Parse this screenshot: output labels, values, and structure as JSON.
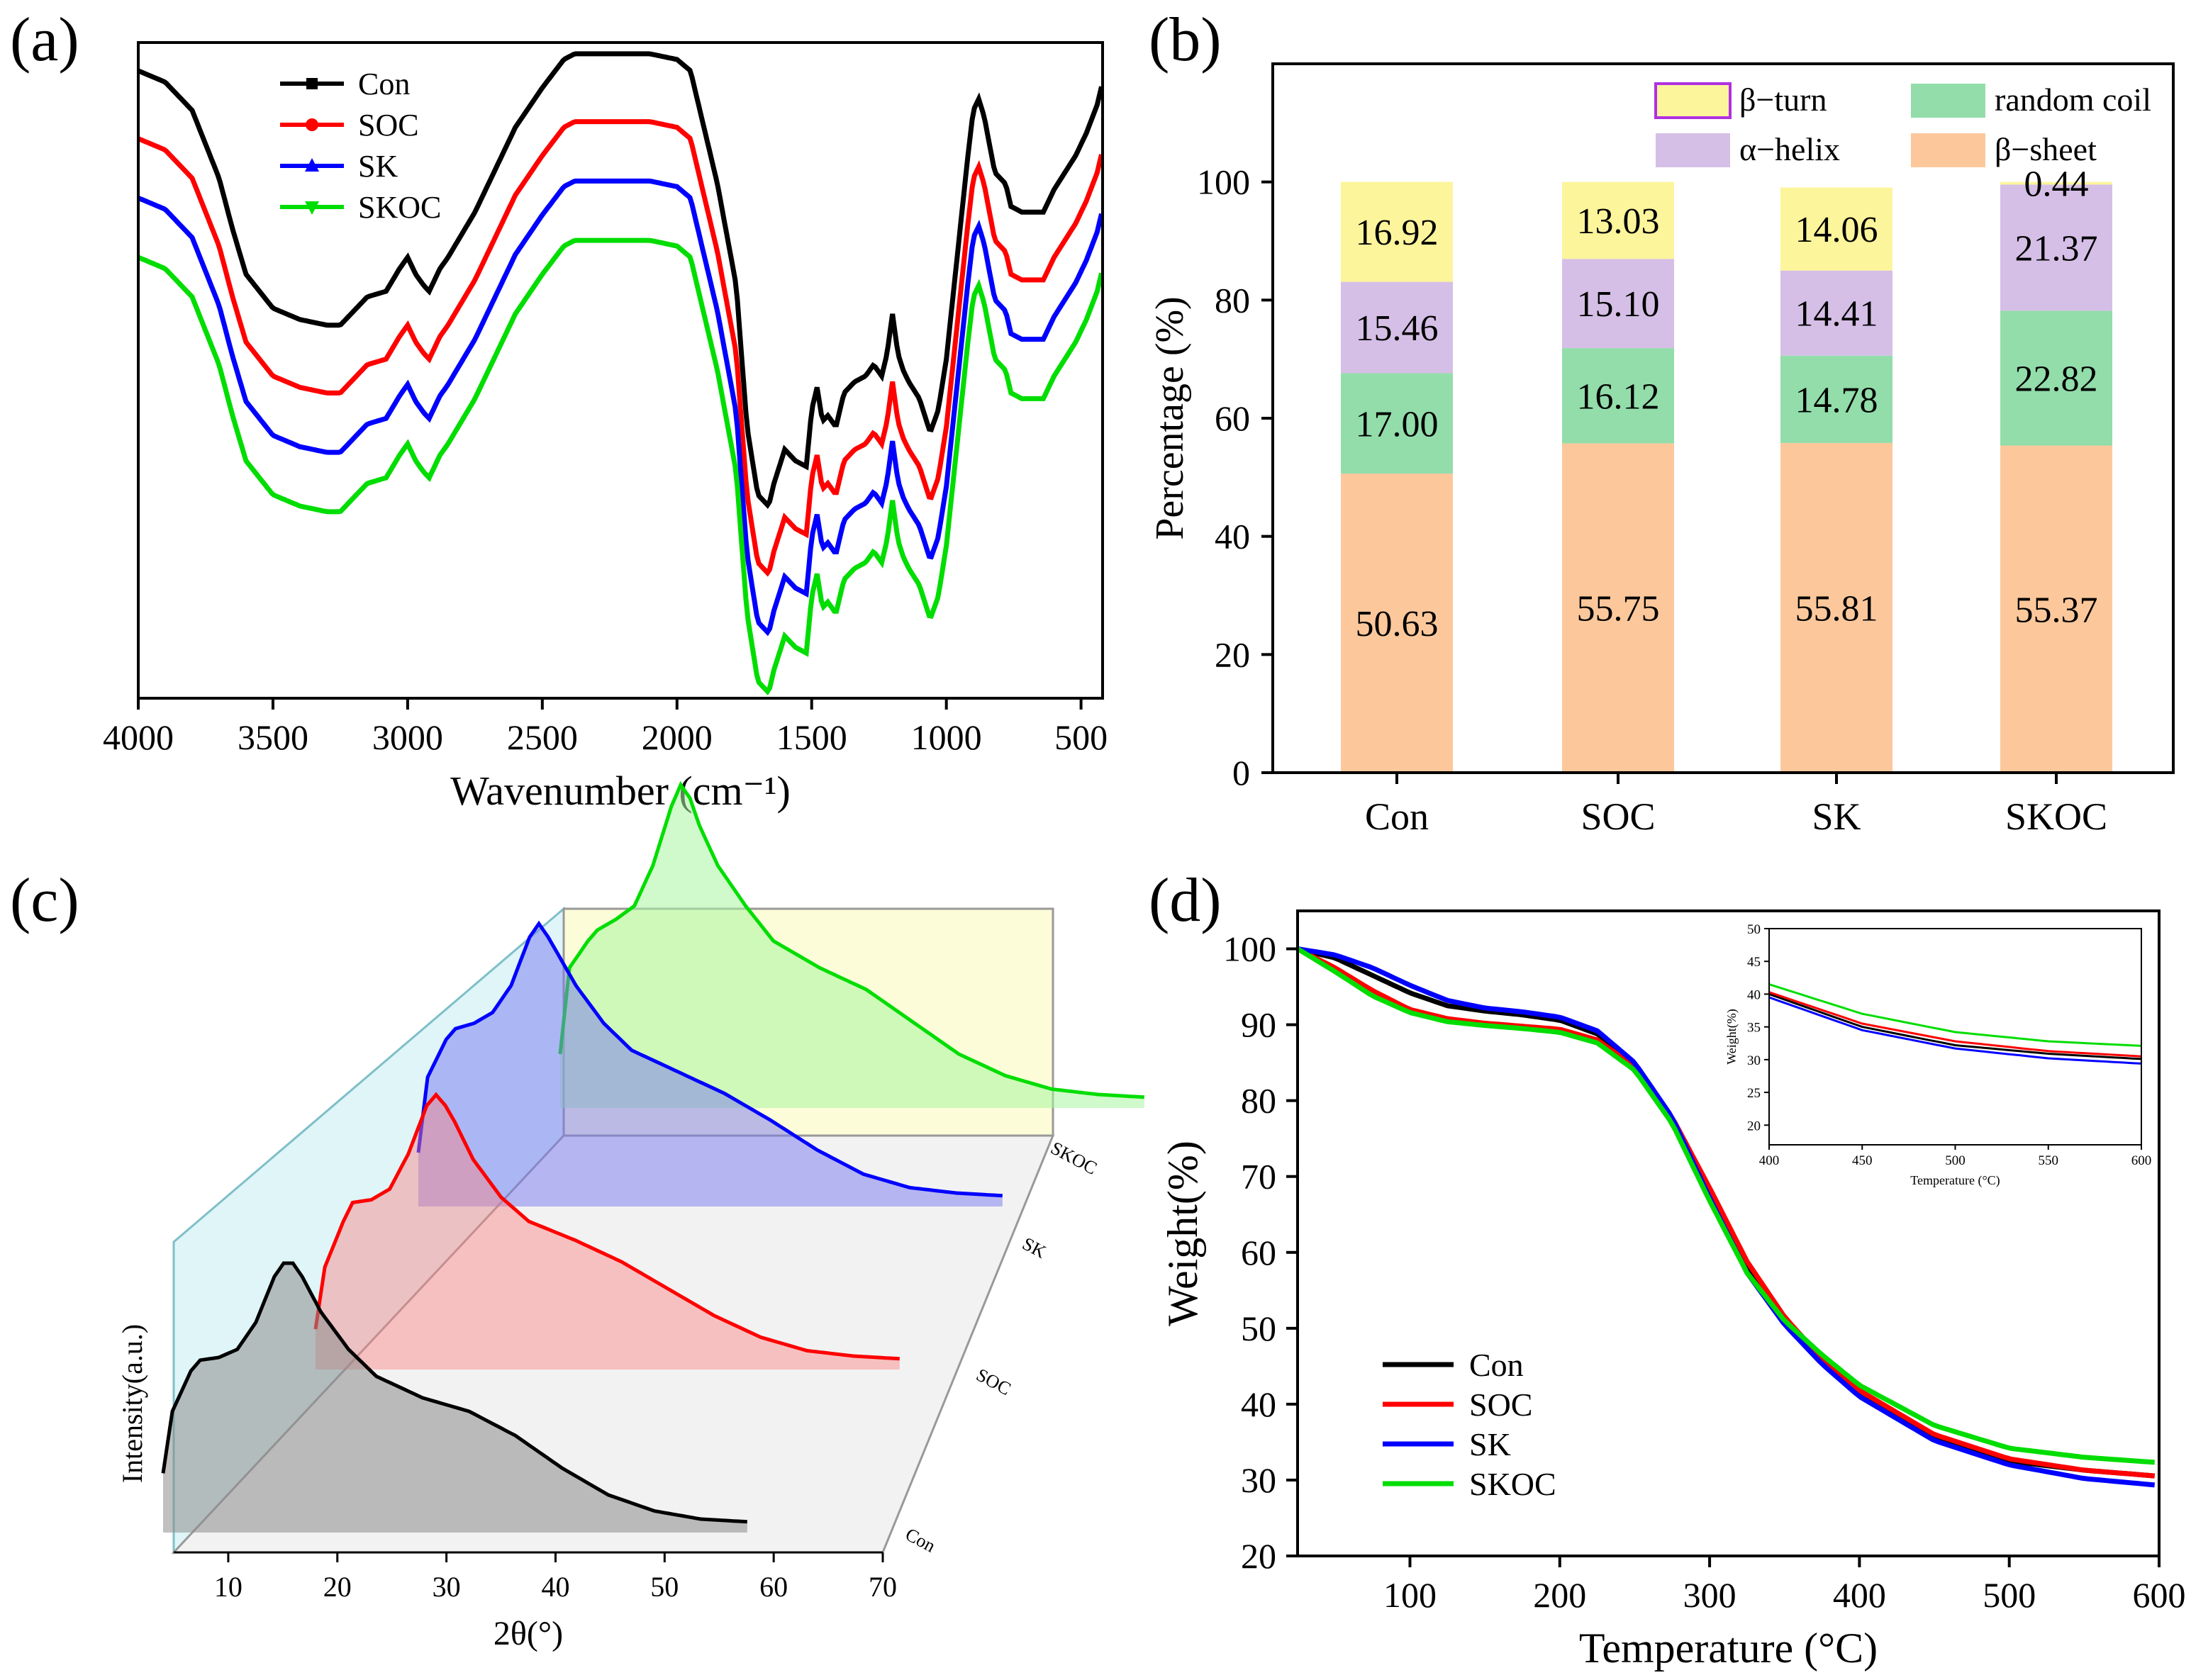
{
  "panels": {
    "a": "(a)",
    "b": "(b)",
    "c": "(c)",
    "d": "(d)"
  },
  "colors": {
    "Con": "#000000",
    "SOC": "#ff0000",
    "SK": "#0000ff",
    "SKOC": "#00dd00"
  },
  "chart_data": [
    {
      "id": "a",
      "type": "line",
      "title": "",
      "xlabel": "Wavenumber (cm⁻¹)",
      "ylabel": "",
      "xlim": [
        4000,
        420
      ],
      "xticks": [
        4000,
        3500,
        3000,
        2500,
        2000,
        1500,
        1000,
        500
      ],
      "legend_position": "top-left",
      "series": [
        {
          "name": "Con",
          "offset": 3.3
        },
        {
          "name": "SOC",
          "offset": 2.1
        },
        {
          "name": "SK",
          "offset": 1.05
        },
        {
          "name": "SKOC",
          "offset": 0
        }
      ],
      "profile": {
        "x": [
          4000,
          3900,
          3800,
          3700,
          3650,
          3600,
          3500,
          3400,
          3300,
          3250,
          3150,
          3080,
          3030,
          3000,
          2970,
          2940,
          2920,
          2880,
          2850,
          2750,
          2600,
          2500,
          2420,
          2380,
          2300,
          2100,
          2000,
          1950,
          1850,
          1780,
          1740,
          1700,
          1660,
          1640,
          1600,
          1560,
          1520,
          1500,
          1480,
          1460,
          1440,
          1410,
          1380,
          1340,
          1300,
          1270,
          1240,
          1220,
          1200,
          1180,
          1160,
          1140,
          1100,
          1060,
          1030,
          1000,
          960,
          920,
          900,
          880,
          860,
          820,
          780,
          760,
          720,
          680,
          640,
          600,
          560,
          520,
          480,
          440,
          420
        ],
        "y": [
          7.8,
          7.6,
          7.1,
          5.9,
          5.0,
          4.2,
          3.6,
          3.4,
          3.3,
          3.3,
          3.8,
          3.9,
          4.3,
          4.5,
          4.2,
          4.0,
          3.9,
          4.3,
          4.5,
          5.3,
          6.8,
          7.5,
          8.0,
          8.1,
          8.1,
          8.1,
          8.0,
          7.8,
          5.8,
          4.0,
          1.5,
          0.3,
          0.1,
          0.5,
          1.1,
          0.9,
          0.8,
          1.8,
          2.2,
          1.6,
          1.7,
          1.5,
          2.1,
          2.3,
          2.4,
          2.6,
          2.4,
          2.8,
          3.5,
          2.8,
          2.5,
          2.3,
          2.0,
          1.4,
          1.8,
          2.7,
          4.5,
          6.3,
          7.1,
          7.3,
          7.0,
          6.0,
          5.8,
          5.4,
          5.3,
          5.3,
          5.3,
          5.7,
          6.0,
          6.3,
          6.7,
          7.2,
          7.6
        ],
        "y_range": [
          0,
          11.6
        ]
      }
    },
    {
      "id": "b",
      "type": "bar",
      "stacked": true,
      "ylabel": "Percentage (%)",
      "xlabel": "",
      "ylim": [
        0,
        120
      ],
      "yticks": [
        0,
        20,
        40,
        60,
        80,
        100
      ],
      "categories": [
        "Con",
        "SOC",
        "SK",
        "SKOC"
      ],
      "legend_position": "top-right",
      "series": [
        {
          "name": "β−sheet",
          "color": "#fcc89b",
          "values": [
            50.63,
            55.75,
            55.81,
            55.37
          ],
          "labels": [
            "50.63",
            "55.75",
            "55.81",
            "55.37"
          ]
        },
        {
          "name": "random coil",
          "color": "#92ddaa",
          "values": [
            17.0,
            16.12,
            14.78,
            22.82
          ],
          "labels": [
            "17.00",
            "16.12",
            "14.78",
            "22.82"
          ]
        },
        {
          "name": "α−helix",
          "color": "#d5bfe6",
          "values": [
            15.46,
            15.1,
            14.41,
            21.37
          ],
          "labels": [
            "15.46",
            "15.10",
            "14.41",
            "21.37"
          ]
        },
        {
          "name": "β−turn",
          "color": "#fcf59b",
          "values": [
            16.92,
            13.03,
            14.06,
            0.44
          ],
          "labels": [
            "16.92",
            "13.03",
            "14.06",
            "0.44"
          ]
        }
      ]
    },
    {
      "id": "c",
      "type": "line",
      "style": "3d-waterfall",
      "xlabel": "2θ(°)",
      "ylabel": "Intensity(a.u.)",
      "xlim": [
        5,
        70
      ],
      "xticks": [
        10,
        20,
        30,
        40,
        50,
        60,
        70
      ],
      "series": [
        {
          "name": "Con",
          "x": [
            7,
            8,
            10,
            11,
            13,
            15,
            17,
            19,
            20,
            21,
            22,
            24,
            27,
            30,
            35,
            40,
            45,
            50,
            55,
            60,
            65,
            70
          ],
          "y": [
            0.22,
            0.45,
            0.6,
            0.64,
            0.65,
            0.68,
            0.78,
            0.95,
            1.0,
            1.0,
            0.95,
            0.82,
            0.68,
            0.58,
            0.5,
            0.45,
            0.36,
            0.24,
            0.14,
            0.08,
            0.05,
            0.04
          ]
        },
        {
          "name": "SOC",
          "x": [
            7,
            8,
            10,
            11,
            13,
            15,
            17,
            19,
            20,
            21,
            22,
            24,
            27,
            30,
            35,
            40,
            45,
            50,
            55,
            60,
            65,
            70
          ],
          "y": [
            0.15,
            0.38,
            0.55,
            0.62,
            0.63,
            0.67,
            0.8,
            0.98,
            1.02,
            0.98,
            0.92,
            0.78,
            0.64,
            0.55,
            0.48,
            0.4,
            0.3,
            0.2,
            0.12,
            0.07,
            0.05,
            0.04
          ]
        },
        {
          "name": "SK",
          "x": [
            7,
            8,
            10,
            11,
            13,
            15,
            17,
            19,
            20,
            21,
            22,
            24,
            27,
            30,
            35,
            40,
            45,
            50,
            55,
            60,
            65,
            70
          ],
          "y": [
            0.2,
            0.48,
            0.62,
            0.66,
            0.68,
            0.72,
            0.82,
            1.0,
            1.05,
            1.0,
            0.94,
            0.82,
            0.68,
            0.58,
            0.5,
            0.42,
            0.32,
            0.21,
            0.12,
            0.07,
            0.05,
            0.04
          ]
        },
        {
          "name": "SKOC",
          "x": [
            7,
            8,
            10,
            11,
            13,
            15,
            17,
            19,
            20,
            21,
            22,
            24,
            27,
            30,
            35,
            40,
            45,
            50,
            55,
            60,
            65,
            70
          ],
          "y": [
            0.2,
            0.52,
            0.62,
            0.66,
            0.7,
            0.75,
            0.9,
            1.12,
            1.2,
            1.15,
            1.05,
            0.9,
            0.75,
            0.62,
            0.52,
            0.44,
            0.32,
            0.2,
            0.12,
            0.07,
            0.05,
            0.04
          ]
        }
      ]
    },
    {
      "id": "d",
      "type": "line",
      "xlabel": "Temperature (°C)",
      "ylabel": "Weight(%)",
      "xlim": [
        25,
        600
      ],
      "ylim": [
        20,
        105
      ],
      "xticks": [
        100,
        200,
        300,
        400,
        500,
        600
      ],
      "yticks": [
        20,
        30,
        40,
        50,
        60,
        70,
        80,
        90,
        100
      ],
      "legend_position": "bottom-left",
      "series": [
        {
          "name": "Con",
          "x": [
            25,
            50,
            75,
            100,
            125,
            150,
            175,
            200,
            225,
            250,
            275,
            300,
            325,
            350,
            375,
            400,
            450,
            500,
            550,
            600
          ],
          "y": [
            100,
            98.8,
            96.5,
            94.2,
            92.5,
            91.8,
            91.3,
            90.6,
            88.8,
            84.8,
            77.5,
            67.5,
            58,
            51,
            45.8,
            41.5,
            35.5,
            32.5,
            31.3,
            30.5
          ]
        },
        {
          "name": "SOC",
          "x": [
            25,
            50,
            75,
            100,
            125,
            150,
            175,
            200,
            225,
            250,
            275,
            300,
            325,
            350,
            375,
            400,
            450,
            500,
            550,
            600
          ],
          "y": [
            100,
            97.5,
            94.5,
            92,
            90.8,
            90.2,
            89.8,
            89.4,
            88,
            84.5,
            77.8,
            68.5,
            58.8,
            51.5,
            46,
            41.8,
            36,
            32.8,
            31.3,
            30.5
          ]
        },
        {
          "name": "SK",
          "x": [
            25,
            50,
            75,
            100,
            125,
            150,
            175,
            200,
            225,
            250,
            275,
            300,
            325,
            350,
            375,
            400,
            450,
            500,
            550,
            600
          ],
          "y": [
            100,
            99.2,
            97.5,
            95.2,
            93.2,
            92.2,
            91.7,
            91,
            89.2,
            85,
            77.8,
            67.2,
            57.3,
            50.5,
            45.3,
            41,
            35.2,
            32,
            30.2,
            29.3
          ]
        },
        {
          "name": "SKOC",
          "x": [
            25,
            50,
            75,
            100,
            125,
            150,
            175,
            200,
            225,
            250,
            275,
            300,
            325,
            350,
            375,
            400,
            450,
            500,
            550,
            600
          ],
          "y": [
            100,
            97,
            93.8,
            91.6,
            90.4,
            89.9,
            89.5,
            89,
            87.6,
            84,
            77,
            66.8,
            57.3,
            51,
            46.5,
            42.5,
            37.2,
            34.2,
            33,
            32.3
          ]
        }
      ],
      "inset": {
        "xlabel": "Temperature (°C)",
        "ylabel": "Weight(%)",
        "xlim": [
          400,
          600
        ],
        "ylim": [
          17,
          50
        ],
        "xticks": [
          400,
          450,
          500,
          550,
          600
        ],
        "yticks": [
          20,
          25,
          30,
          35,
          40,
          45,
          50
        ],
        "series": [
          {
            "name": "Con",
            "x": [
              400,
              450,
              500,
              550,
              600
            ],
            "y": [
              40,
              35,
              32.2,
              30.9,
              30.1
            ]
          },
          {
            "name": "SOC",
            "x": [
              400,
              450,
              500,
              550,
              600
            ],
            "y": [
              40.3,
              35.5,
              32.8,
              31.3,
              30.5
            ]
          },
          {
            "name": "SK",
            "x": [
              400,
              450,
              500,
              550,
              600
            ],
            "y": [
              39.5,
              34.5,
              31.7,
              30.2,
              29.4
            ]
          },
          {
            "name": "SKOC",
            "x": [
              400,
              450,
              500,
              550,
              600
            ],
            "y": [
              41.5,
              37,
              34.2,
              32.8,
              32.1
            ]
          }
        ]
      }
    }
  ]
}
